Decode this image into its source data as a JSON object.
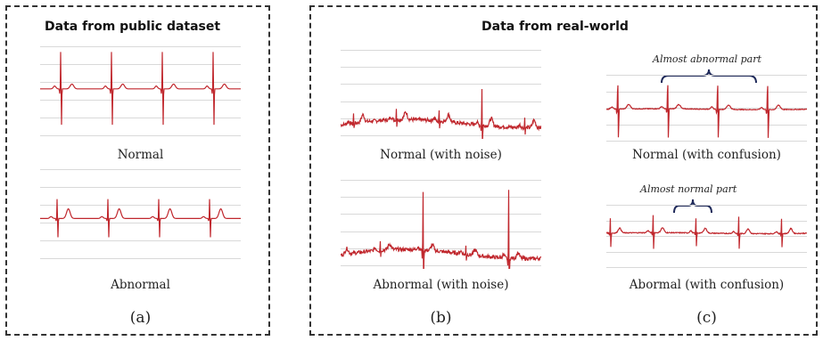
{
  "public_panel": {
    "title": "Data from public dataset",
    "caption_normal": "Normal",
    "caption_abnormal": "Abnormal",
    "label": "(a)"
  },
  "realworld_panel": {
    "title": "Data from real-world",
    "caption_normal_noise": "Normal (with noise)",
    "caption_abnormal_noise": "Abnormal (with noise)",
    "caption_normal_confusion": "Normal (with confusion)",
    "caption_abnormal_confusion": "Abormal (with confusion)",
    "annotation_almost_abnormal": "Almost abnormal part",
    "annotation_almost_normal": "Almost normal part",
    "label_b": "(b)",
    "label_c": "(c)"
  },
  "colors": {
    "trace": "#c0272d",
    "grid": "#d9d9d9",
    "border": "#333333",
    "brace": "#1f2a5a"
  }
}
